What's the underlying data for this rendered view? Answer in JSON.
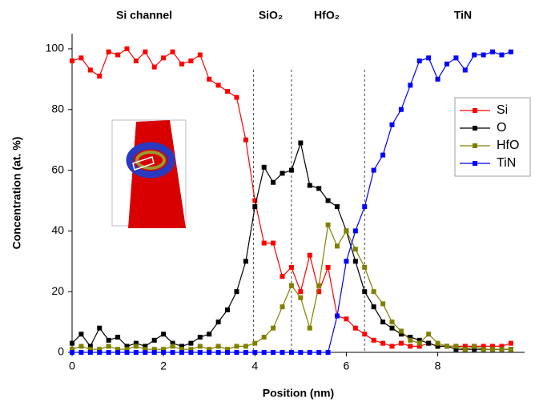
{
  "chart_data": {
    "type": "line",
    "x_label": "Position (nm)",
    "y_label": "Concentration (at. %)",
    "region_labels": [
      "Si channel",
      "SiO₂",
      "HfO₂",
      "TiN"
    ],
    "region_boundaries": [
      3.97,
      4.8,
      6.4
    ],
    "x": [
      0,
      0.2,
      0.4,
      0.6,
      0.8,
      1.0,
      1.2,
      1.4,
      1.6,
      1.8,
      2.0,
      2.2,
      2.4,
      2.6,
      2.8,
      3.0,
      3.2,
      3.4,
      3.6,
      3.8,
      4.0,
      4.2,
      4.4,
      4.6,
      4.8,
      5.0,
      5.2,
      5.4,
      5.6,
      5.8,
      6.0,
      6.2,
      6.4,
      6.6,
      6.8,
      7.0,
      7.2,
      7.4,
      7.6,
      7.8,
      8.0,
      8.2,
      8.4,
      8.6,
      8.8,
      9.0,
      9.2,
      9.4,
      9.6
    ],
    "series": [
      {
        "name": "Si",
        "color": "#ff0000",
        "values": [
          96,
          97,
          93,
          91,
          99,
          98,
          100,
          96,
          99,
          94,
          97,
          99,
          95,
          96,
          98,
          90,
          88,
          86,
          84,
          70,
          50,
          36,
          36,
          25,
          28,
          20,
          32,
          20,
          28,
          12,
          11,
          8,
          6,
          4,
          3,
          2,
          3,
          2,
          2,
          3,
          2,
          2,
          2,
          2,
          2,
          2,
          2,
          2,
          3
        ]
      },
      {
        "name": "O",
        "color": "#000000",
        "values": [
          3,
          6,
          2,
          8,
          4,
          5,
          2,
          3,
          2,
          4,
          6,
          3,
          2,
          3,
          5,
          6,
          10,
          14,
          20,
          30,
          48,
          61,
          56,
          59,
          60,
          69,
          55,
          54,
          50,
          48,
          40,
          30,
          20,
          15,
          10,
          8,
          6,
          5,
          4,
          3,
          2,
          2,
          1,
          1,
          1,
          1,
          1,
          1,
          1
        ]
      },
      {
        "name": "HfO",
        "color": "#808000",
        "values": [
          1,
          2,
          1,
          1,
          2,
          1,
          1,
          2,
          1,
          1,
          1,
          2,
          1,
          1,
          2,
          1,
          2,
          1,
          2,
          2,
          3,
          5,
          8,
          15,
          22,
          18,
          8,
          22,
          42,
          35,
          40,
          34,
          28,
          20,
          16,
          10,
          7,
          4,
          3,
          6,
          3,
          2,
          2,
          1,
          2,
          1,
          1,
          1,
          1
        ]
      },
      {
        "name": "TiN",
        "color": "#0000ff",
        "values": [
          0,
          0,
          0,
          0,
          0,
          0,
          0,
          0,
          0,
          0,
          0,
          0,
          0,
          0,
          0,
          0,
          0,
          0,
          0,
          0,
          0,
          0,
          0,
          0,
          0,
          0,
          0,
          0,
          0,
          12,
          30,
          40,
          48,
          60,
          65,
          75,
          80,
          88,
          96,
          97,
          90,
          95,
          97,
          93,
          98,
          98,
          99,
          98,
          99
        ]
      }
    ],
    "xlim": [
      0,
      9.9
    ],
    "xticks": [
      0,
      2,
      4,
      6,
      8
    ],
    "ylim": [
      0,
      105
    ],
    "yticks": [
      0,
      20,
      40,
      60,
      80,
      100
    ],
    "legend": "right"
  }
}
